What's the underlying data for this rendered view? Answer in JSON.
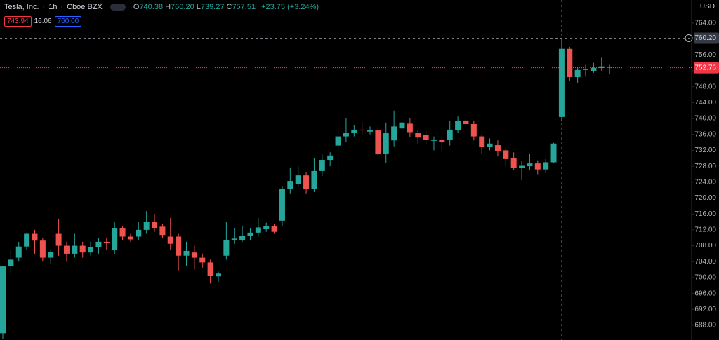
{
  "header": {
    "symbol": "Tesla, Inc.",
    "interval": "1h",
    "exchange": "Cboe BZX",
    "ohlc": [
      {
        "key": "O",
        "value": "740.38"
      },
      {
        "key": "H",
        "value": "760.20"
      },
      {
        "key": "L",
        "value": "739.27"
      },
      {
        "key": "C",
        "value": "757.51"
      }
    ],
    "change": "+23.75 (+3.24%)",
    "bid": "743.94",
    "spread": "16.06",
    "ask": "760.00",
    "currency": "USD"
  },
  "chart_data": {
    "type": "candlestick",
    "up_color": "#26a69a",
    "down_color": "#ef5350",
    "ylim": [
      684.3,
      769.8
    ],
    "yticks": [
      {
        "value": 764,
        "label": "764.00"
      },
      {
        "value": 760,
        "label": "760.00"
      },
      {
        "value": 756,
        "label": "756.00"
      },
      {
        "value": 752,
        "label": "752.00"
      },
      {
        "value": 748,
        "label": "748.00"
      },
      {
        "value": 744,
        "label": "744.00"
      },
      {
        "value": 740,
        "label": "740.00"
      },
      {
        "value": 736,
        "label": "736.00"
      },
      {
        "value": 732,
        "label": "732.00"
      },
      {
        "value": 728,
        "label": "728.00"
      },
      {
        "value": 724,
        "label": "724.00"
      },
      {
        "value": 720,
        "label": "720.00"
      },
      {
        "value": 716,
        "label": "716.00"
      },
      {
        "value": 712,
        "label": "712.00"
      },
      {
        "value": 708,
        "label": "708.00"
      },
      {
        "value": 704,
        "label": "704.00"
      },
      {
        "value": 700,
        "label": "700.00"
      },
      {
        "value": 696,
        "label": "696.00"
      },
      {
        "value": 692,
        "label": "692.00"
      },
      {
        "value": 688,
        "label": "688.00"
      }
    ],
    "crosshair": {
      "value": 760.2,
      "label": "760.20"
    },
    "last_price": {
      "value": 752.76,
      "label": "752.76"
    },
    "open": [
      686,
      702.8,
      705,
      707.8,
      711,
      709.3,
      705,
      711,
      708,
      706,
      708,
      706.3,
      707.7,
      709,
      707,
      712.5,
      710.3,
      710.3,
      712,
      714,
      712.8,
      710.3,
      710.3,
      705.5,
      706.3,
      705,
      703.8,
      700.3,
      705.5,
      709.5,
      709.5,
      710.5,
      711.3,
      712.2,
      712.9,
      714.3,
      722.2,
      723.6,
      725.7,
      722.2,
      726.8,
      729.6,
      733.2,
      735.5,
      736.3,
      737.2,
      736.7,
      737,
      731.2,
      734.5,
      737.5,
      738.7,
      736.3,
      735.8,
      734.4,
      734.6,
      734.6,
      737,
      739.5,
      738.6,
      735.5,
      732.8,
      733.3,
      732,
      730.1,
      727.6,
      728,
      728.7,
      727.2,
      729,
      740.38,
      757.5,
      750.4,
      752.4,
      752,
      752.7,
      753
    ],
    "high": [
      703,
      707,
      709,
      711.3,
      712,
      710,
      707,
      714.8,
      709,
      711,
      709,
      709,
      710,
      710,
      714,
      713,
      711,
      714,
      716.7,
      716,
      713.5,
      715,
      711,
      709,
      708,
      706,
      704.5,
      701.5,
      714,
      712.5,
      713,
      712.5,
      715,
      713.8,
      713.5,
      723,
      727.5,
      728,
      726.5,
      730,
      731,
      731.5,
      738,
      740.2,
      738.3,
      738.8,
      738,
      738,
      739,
      742,
      741,
      740,
      737,
      737,
      735.5,
      735.5,
      739.5,
      740.5,
      740.9,
      739.5,
      736,
      735,
      734.5,
      732.5,
      731.5,
      729.3,
      731.2,
      729.5,
      729.8,
      733.9,
      760.2,
      758,
      753,
      753.5,
      754,
      755.3,
      753.5
    ],
    "low": [
      684.5,
      701,
      704,
      707,
      706,
      704,
      703.5,
      705.5,
      704,
      705,
      705,
      705.5,
      706,
      707,
      705.8,
      709.5,
      709,
      709.5,
      711,
      711.5,
      710,
      707,
      701.8,
      703,
      702,
      702.5,
      698.5,
      699,
      704.5,
      708.5,
      709,
      709.5,
      710.3,
      711.5,
      711,
      713,
      721,
      722.8,
      721,
      721.5,
      725.5,
      728,
      726.6,
      734,
      735.5,
      736,
      736,
      730.5,
      728.8,
      733,
      736,
      735.3,
      733.5,
      733.5,
      732,
      731.8,
      733.2,
      736.3,
      738,
      734.5,
      731.2,
      732,
      730.5,
      728,
      727,
      724.5,
      727,
      726,
      726.3,
      728.8,
      739.27,
      749.5,
      749,
      750.5,
      751.5,
      752,
      751.2
    ],
    "close": [
      702.8,
      704.5,
      707.8,
      711,
      709.3,
      705,
      706.4,
      708,
      706,
      708,
      706.3,
      707.7,
      709,
      708.7,
      712.5,
      710.3,
      709.6,
      712,
      714,
      712.5,
      710.7,
      708.5,
      705.5,
      706.7,
      705,
      703.8,
      700.5,
      701,
      709.5,
      709.8,
      710.5,
      711.3,
      712.6,
      712.9,
      711.5,
      722.2,
      724.3,
      725.7,
      722.2,
      726.8,
      729.6,
      730.7,
      735.5,
      736.3,
      737.2,
      737,
      737,
      731,
      736.3,
      738,
      739,
      736.4,
      735.2,
      734.6,
      734.6,
      734,
      737.2,
      739.3,
      738.6,
      735.5,
      732.8,
      733.7,
      731.8,
      729.8,
      727.5,
      728.1,
      728.7,
      727.2,
      729,
      733.7,
      757.51,
      750.4,
      752.2,
      752.2,
      752.7,
      753.1,
      752.76
    ]
  }
}
